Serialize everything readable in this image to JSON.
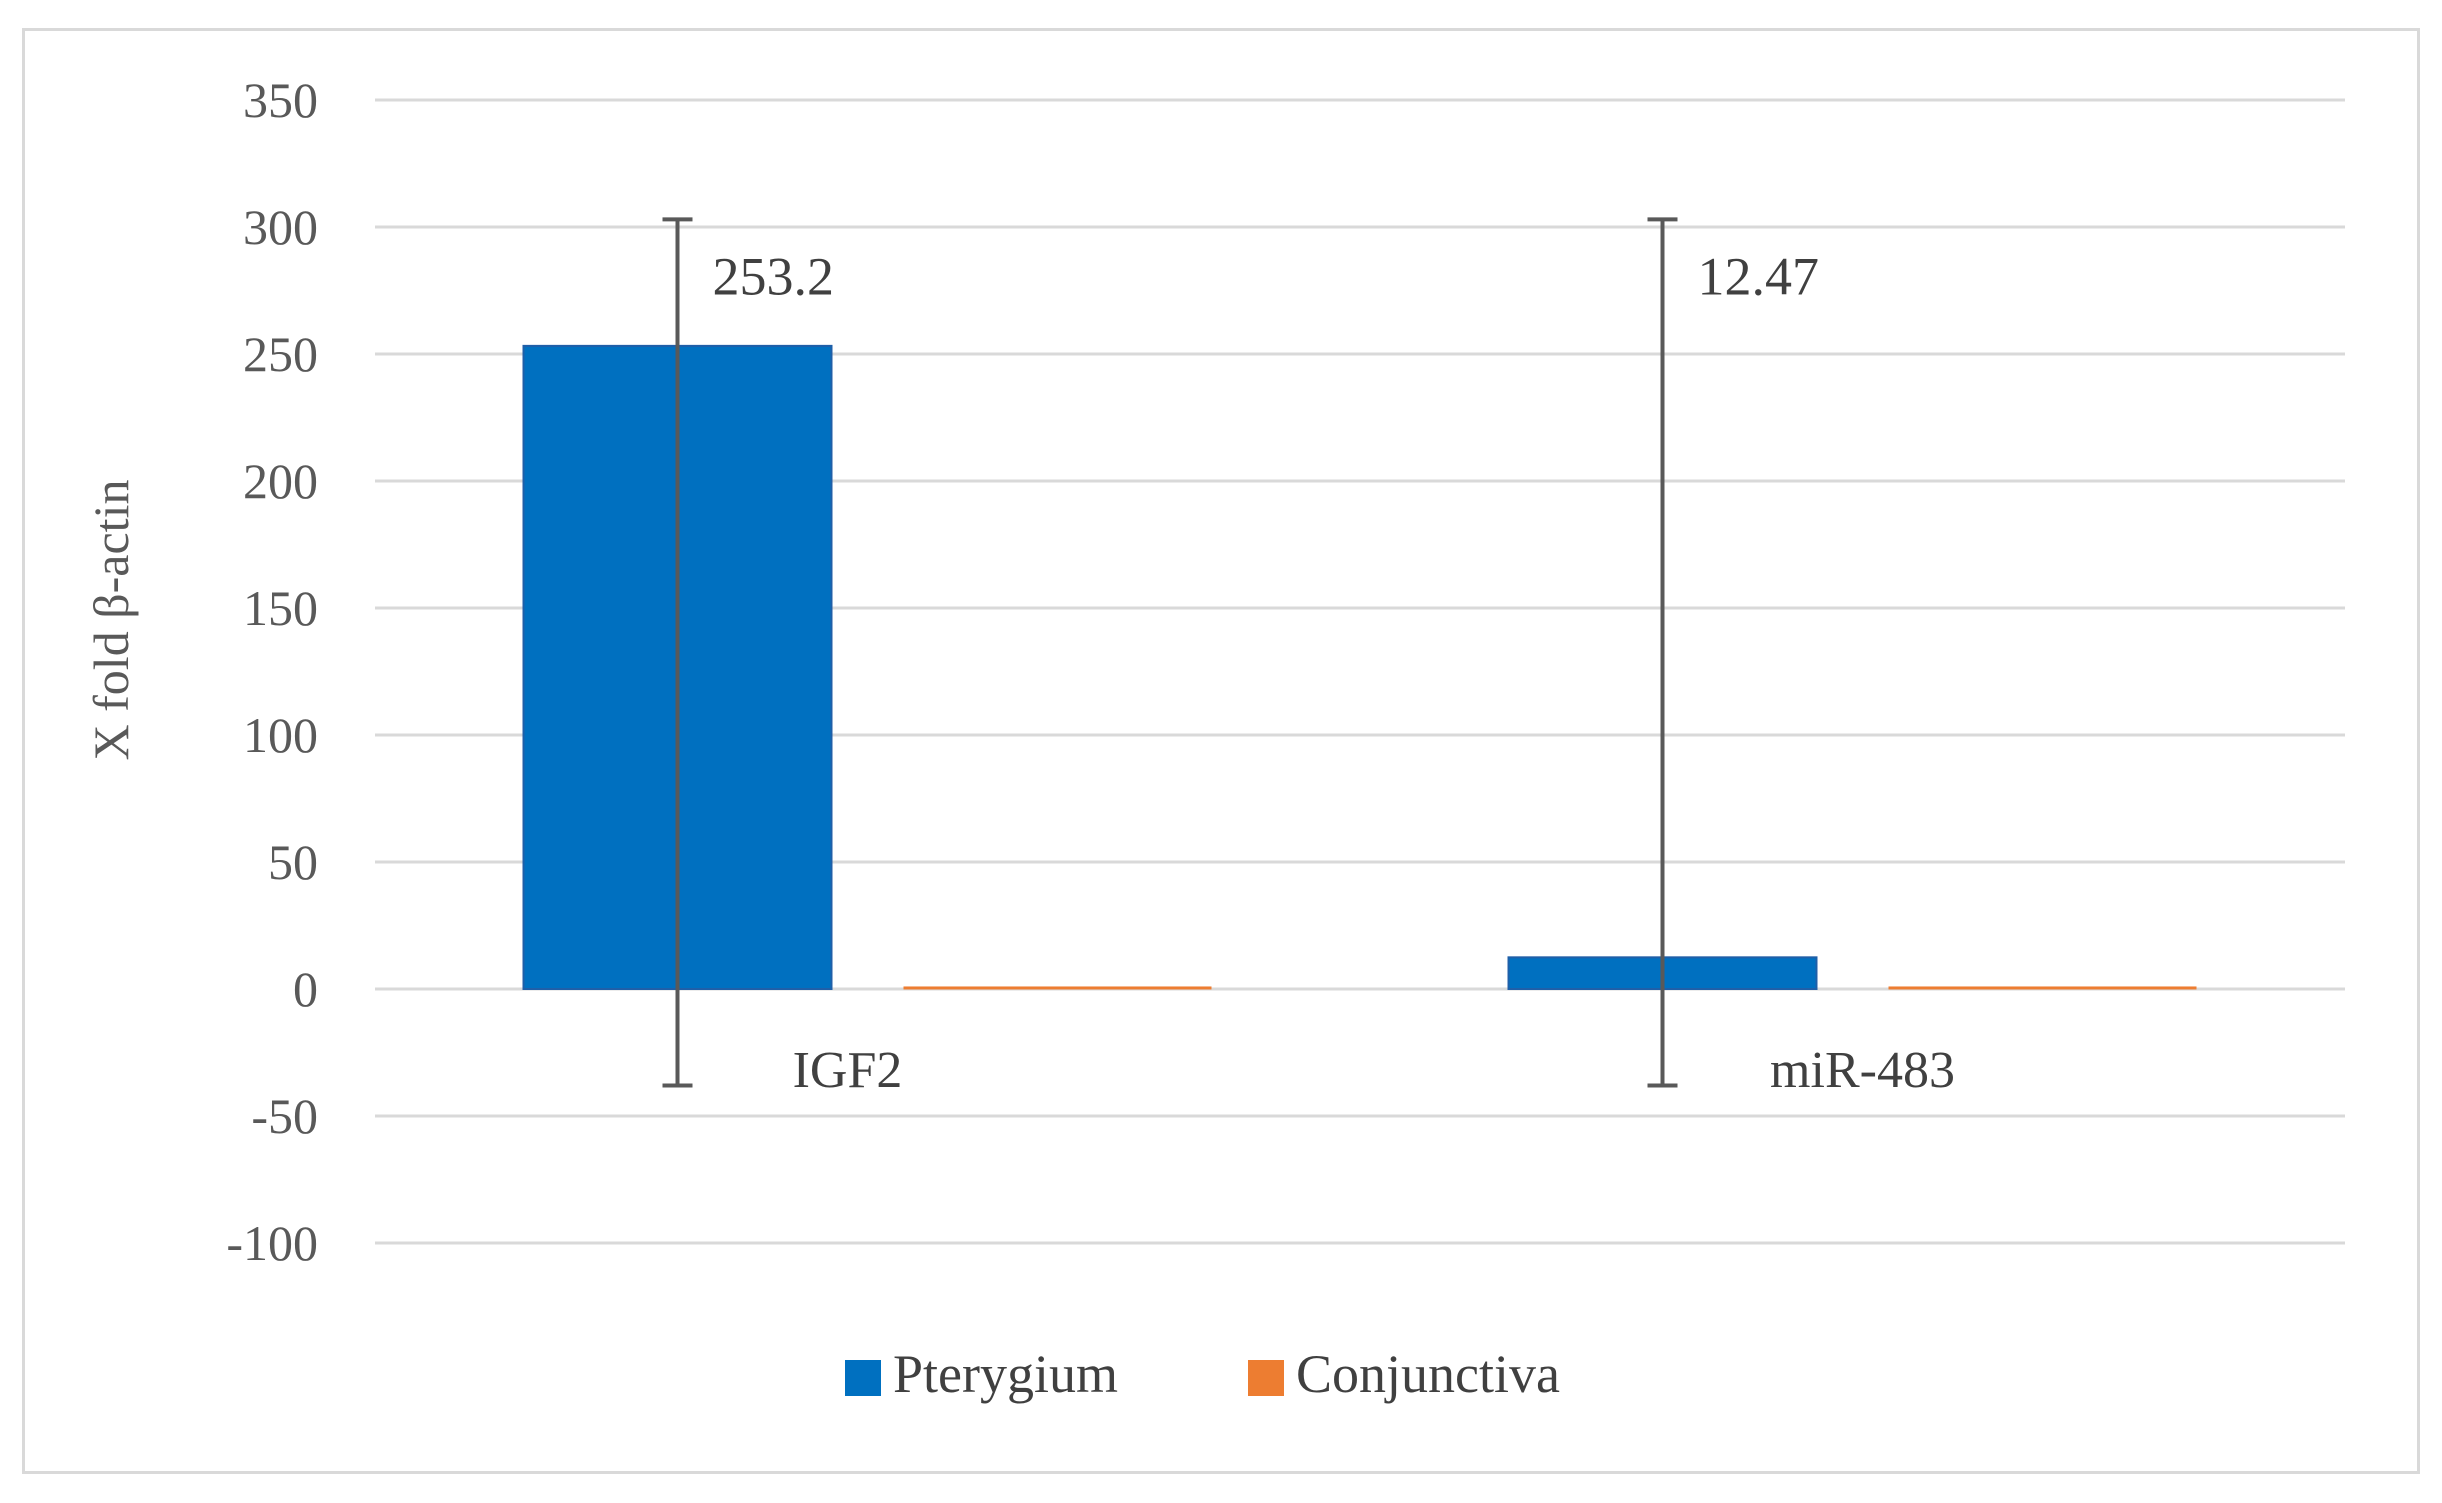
{
  "chart_data": {
    "type": "bar",
    "title": "",
    "xlabel": "",
    "ylabel": "X fold β-actin",
    "ylim": [
      -100,
      350
    ],
    "yticks": [
      350,
      300,
      250,
      200,
      150,
      100,
      50,
      0,
      -50,
      -100
    ],
    "grid": true,
    "legend_position": "bottom",
    "categories": [
      "IGF2",
      "miR-483"
    ],
    "series": [
      {
        "name": "Pterygium",
        "color": "#0070C0",
        "values": [
          253.2,
          12.47
        ],
        "error": [
          {
            "low": -38,
            "high": 303
          },
          {
            "low": -38,
            "high": 303
          }
        ],
        "labels": [
          "253.2",
          "12.47"
        ]
      },
      {
        "name": "Conjunctiva",
        "color": "#ED7D31",
        "values": [
          1,
          1
        ]
      }
    ]
  }
}
